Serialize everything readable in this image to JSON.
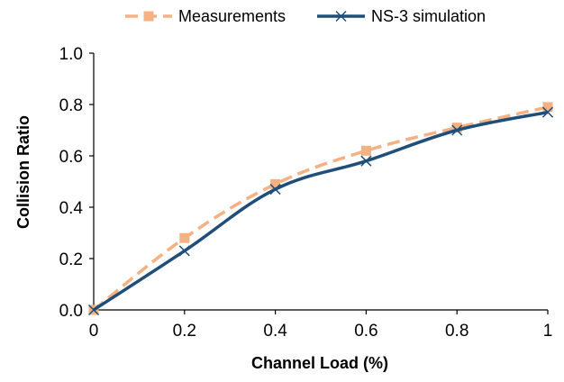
{
  "chart_data": {
    "type": "line",
    "title": "",
    "xlabel": "Channel Load (%)",
    "ylabel": "Collision Ratio",
    "xlim": [
      0,
      1
    ],
    "ylim": [
      0,
      1
    ],
    "x_ticks": [
      "0",
      "0.2",
      "0.4",
      "0.6",
      "0.8",
      "1"
    ],
    "y_ticks": [
      "0.0",
      "0.2",
      "0.4",
      "0.6",
      "0.8",
      "1.0"
    ],
    "x_tick_values": [
      0,
      0.2,
      0.4,
      0.6,
      0.8,
      1
    ],
    "y_tick_values": [
      0,
      0.2,
      0.4,
      0.6,
      0.8,
      1
    ],
    "grid": false,
    "legend_position": "top",
    "series": [
      {
        "name": "Measurements",
        "color": "#f5b183",
        "line_style": "dashed",
        "marker": "square",
        "x": [
          0,
          0.2,
          0.4,
          0.6,
          0.8,
          1
        ],
        "y": [
          0,
          0.28,
          0.49,
          0.62,
          0.71,
          0.79
        ]
      },
      {
        "name": "NS-3 simulation",
        "color": "#1f4e79",
        "line_style": "solid",
        "marker": "x",
        "x": [
          0,
          0.2,
          0.4,
          0.6,
          0.8,
          1
        ],
        "y": [
          0,
          0.23,
          0.47,
          0.58,
          0.7,
          0.77
        ]
      }
    ]
  }
}
